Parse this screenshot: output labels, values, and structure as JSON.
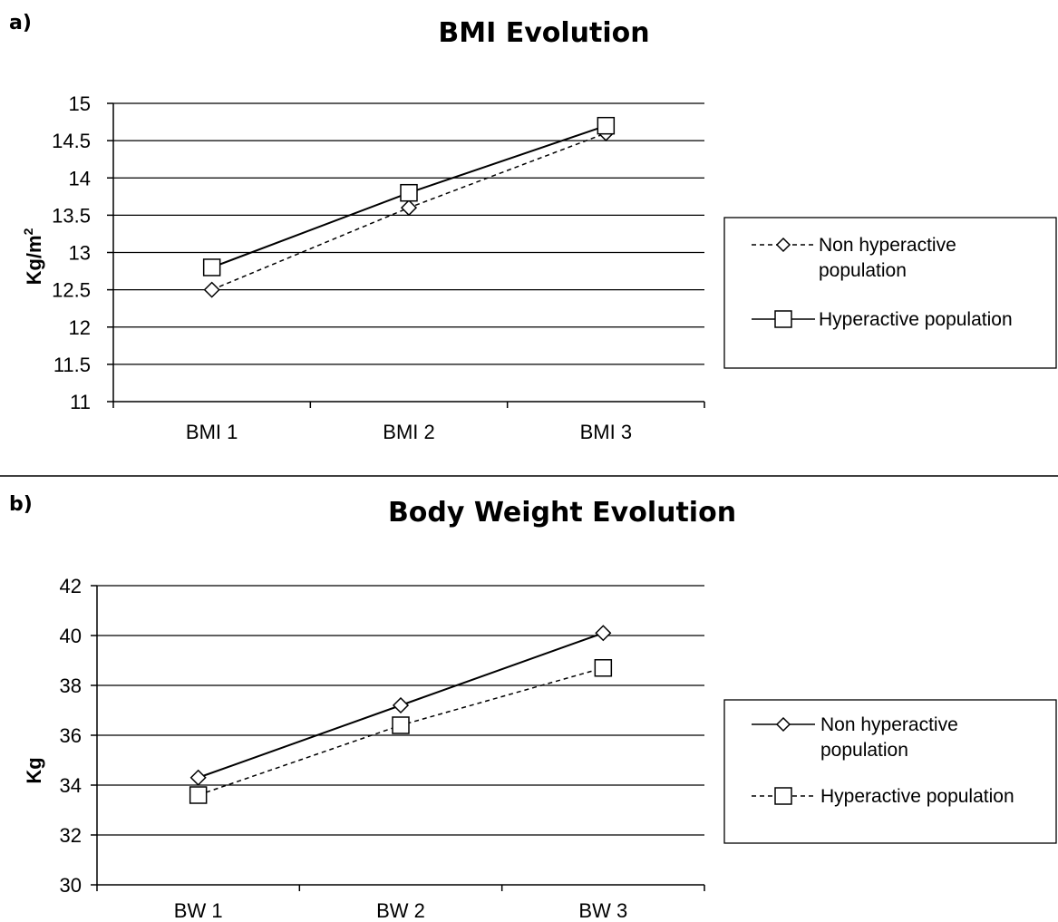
{
  "chart_data": [
    {
      "type": "line",
      "panel_label": "a)",
      "title": "BMI Evolution",
      "ylabel_base": "Kg/m",
      "ylabel_sup": "2",
      "categories": [
        "BMI 1",
        "BMI 2",
        "BMI 3"
      ],
      "ylim": [
        11,
        15
      ],
      "ytick_step": 0.5,
      "yticks": [
        "11",
        "11.5",
        "12",
        "12.5",
        "13",
        "13.5",
        "14",
        "14.5",
        "15"
      ],
      "grid": true,
      "legend_position": "right",
      "series": [
        {
          "name": "Non hyperactive population",
          "name_lines": [
            "Non hyperactive",
            "population"
          ],
          "marker": "diamond",
          "line_style": "dashed",
          "values": [
            12.5,
            13.6,
            14.6
          ]
        },
        {
          "name": "Hyperactive population",
          "name_lines": [
            "Hyperactive population"
          ],
          "marker": "square",
          "line_style": "solid",
          "values": [
            12.8,
            13.8,
            14.7
          ]
        }
      ]
    },
    {
      "type": "line",
      "panel_label": "b)",
      "title": "Body Weight Evolution",
      "ylabel_base": "Kg",
      "ylabel_sup": "",
      "categories": [
        "BW 1",
        "BW 2",
        "BW 3"
      ],
      "ylim": [
        30,
        42
      ],
      "ytick_step": 2,
      "yticks": [
        "30",
        "32",
        "34",
        "36",
        "38",
        "40",
        "42"
      ],
      "grid": true,
      "legend_position": "right",
      "series": [
        {
          "name": "Non hyperactive population",
          "name_lines": [
            "Non hyperactive",
            "population"
          ],
          "marker": "diamond",
          "line_style": "solid",
          "values": [
            34.3,
            37.2,
            40.1
          ]
        },
        {
          "name": "Hyperactive population",
          "name_lines": [
            "Hyperactive population"
          ],
          "marker": "square",
          "line_style": "dashed",
          "values": [
            33.6,
            36.4,
            38.7
          ]
        }
      ]
    }
  ]
}
